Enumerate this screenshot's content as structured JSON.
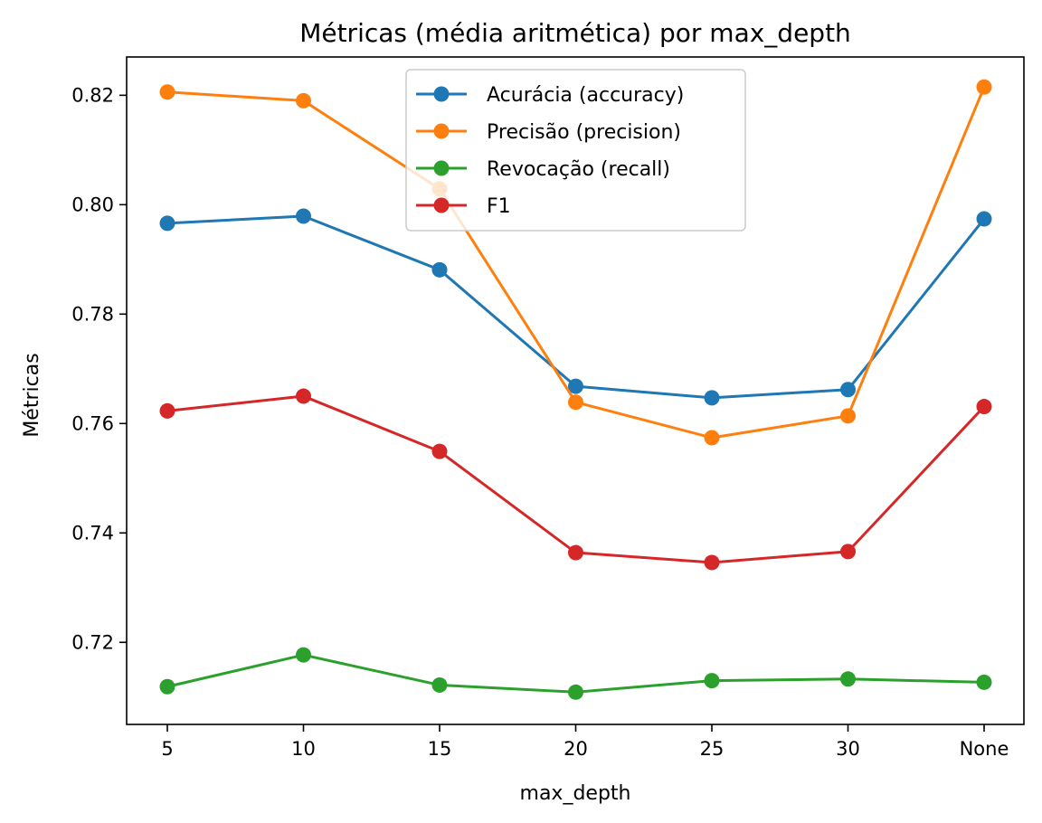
{
  "chart_data": {
    "type": "line",
    "title": "Métricas (média aritmética) por max_depth",
    "xlabel": "max_depth",
    "ylabel": "Métricas",
    "categories": [
      "5",
      "10",
      "15",
      "20",
      "25",
      "30",
      "None"
    ],
    "ylim": [
      0.705,
      0.827
    ],
    "yticks": [
      0.72,
      0.74,
      0.76,
      0.78,
      0.8,
      0.82
    ],
    "ytick_labels": [
      "0.72",
      "0.74",
      "0.76",
      "0.78",
      "0.80",
      "0.82"
    ],
    "grid": false,
    "legend_position": "upper center",
    "marker": "circle",
    "series": [
      {
        "name": "Acurácia (accuracy)",
        "color": "#1f77b4",
        "values": [
          0.7966,
          0.7979,
          0.7881,
          0.7668,
          0.7647,
          0.7662,
          0.7974
        ]
      },
      {
        "name": "Precisão (precision)",
        "color": "#ff7f0e",
        "values": [
          0.8206,
          0.819,
          0.8029,
          0.7639,
          0.7574,
          0.7614,
          0.8215
        ]
      },
      {
        "name": "Revocação (recall)",
        "color": "#2ca02c",
        "values": [
          0.7119,
          0.7177,
          0.7122,
          0.7109,
          0.713,
          0.7133,
          0.7127
        ]
      },
      {
        "name": "F1",
        "color": "#d62728",
        "values": [
          0.7623,
          0.765,
          0.7549,
          0.7364,
          0.7346,
          0.7366,
          0.7631
        ]
      }
    ]
  }
}
